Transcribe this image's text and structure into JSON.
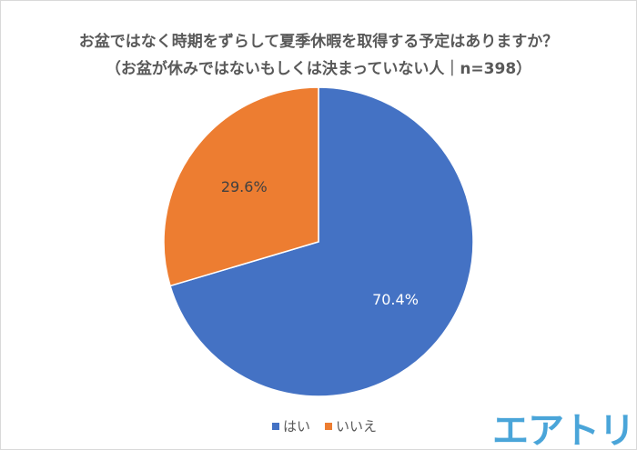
{
  "chart_data": {
    "type": "pie",
    "title": "お盆ではなく時期をずらして夏季休暇を取得する予定はありますか？",
    "subtitle": "（お盆が休みではないもしくは決まっていない人｜n=398）",
    "categories": [
      "はい",
      "いいえ"
    ],
    "values": [
      70.4,
      29.6
    ],
    "data_labels": [
      "70.4%",
      "29.6%"
    ],
    "colors": [
      "#4472c4",
      "#ed7d31"
    ],
    "legend_position": "bottom"
  },
  "logo": "エアトリ"
}
